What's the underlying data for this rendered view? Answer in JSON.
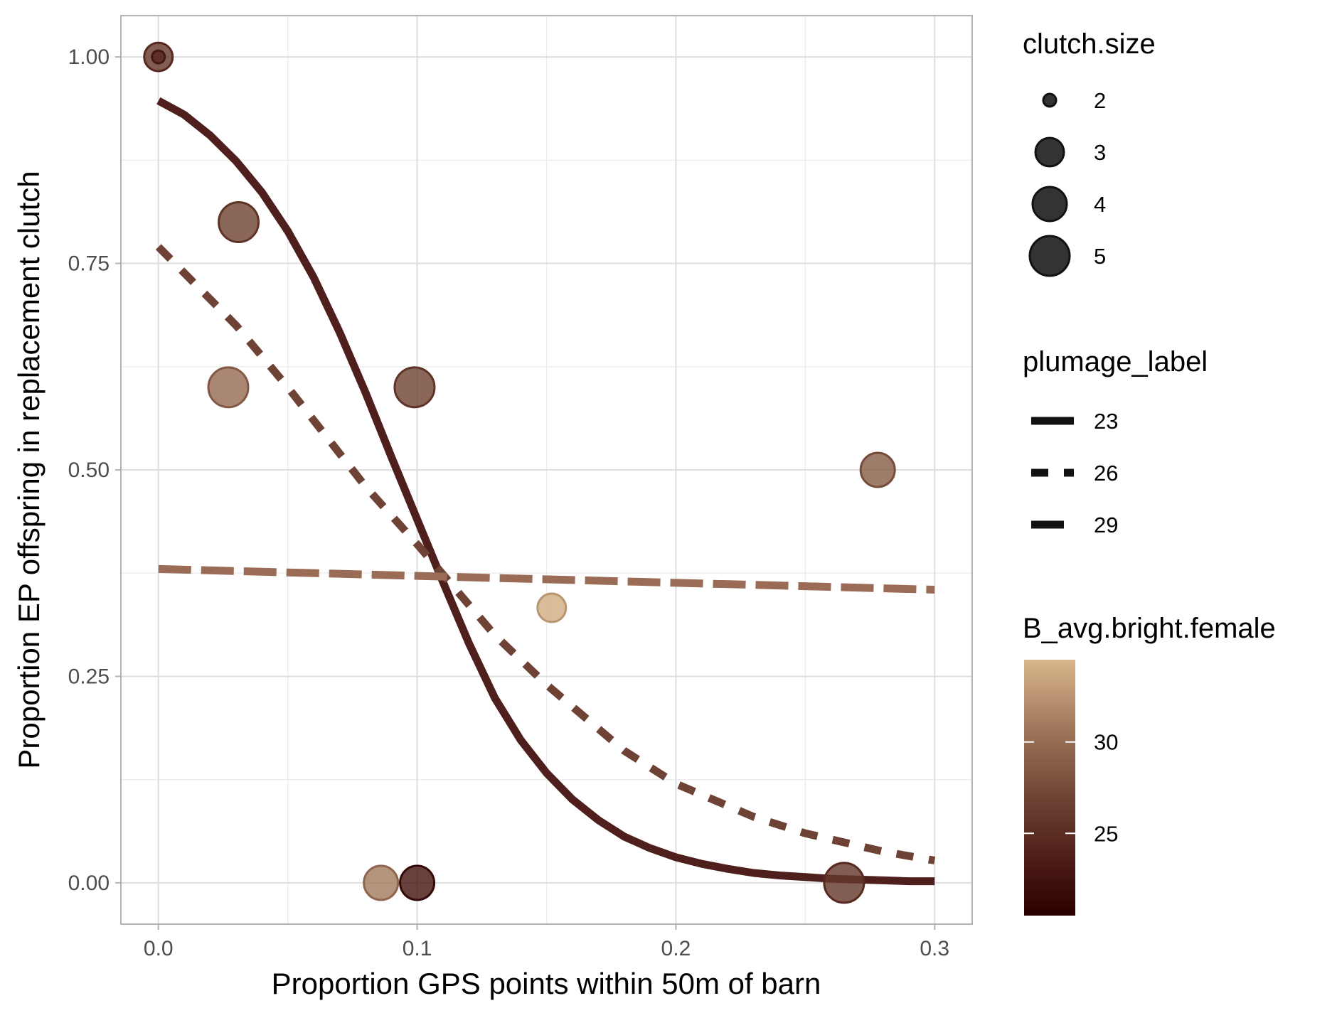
{
  "chart_data": {
    "type": "scatter",
    "xlabel": "Proportion GPS points within 50m of barn",
    "ylabel": "Proportion EP offspring in replacement clutch",
    "xlim": [
      -0.0145,
      0.3145
    ],
    "ylim": [
      -0.05,
      1.05
    ],
    "x_ticks": [
      0.0,
      0.1,
      0.2,
      0.3
    ],
    "x_tick_labels": [
      "0.0",
      "0.1",
      "0.2",
      "0.3"
    ],
    "y_ticks": [
      0.0,
      0.25,
      0.5,
      0.75,
      1.0
    ],
    "y_tick_labels": [
      "0.00",
      "0.25",
      "0.50",
      "0.75",
      "1.00"
    ],
    "grid": true,
    "points": [
      {
        "x": 0.0,
        "y": 1.0,
        "clutch_size": 3,
        "brightness": 26
      },
      {
        "x": 0.0,
        "y": 1.0,
        "clutch_size": 2,
        "brightness": 24.5
      },
      {
        "x": 0.031,
        "y": 0.8,
        "clutch_size": 5,
        "brightness": 27
      },
      {
        "x": 0.027,
        "y": 0.6,
        "clutch_size": 5,
        "brightness": 30
      },
      {
        "x": 0.099,
        "y": 0.6,
        "clutch_size": 5,
        "brightness": 27
      },
      {
        "x": 0.278,
        "y": 0.5,
        "clutch_size": 4,
        "brightness": 29
      },
      {
        "x": 0.152,
        "y": 0.333,
        "clutch_size": 3,
        "brightness": 34
      },
      {
        "x": 0.086,
        "y": 0.0,
        "clutch_size": 4,
        "brightness": 31
      },
      {
        "x": 0.1,
        "y": 0.0,
        "clutch_size": 4,
        "brightness": 23
      },
      {
        "x": 0.265,
        "y": 0.0,
        "clutch_size": 5,
        "brightness": 26
      }
    ],
    "series": [
      {
        "name": "23",
        "linetype": "solid",
        "color": "#4e1f1c",
        "x": [
          0.0,
          0.01,
          0.02,
          0.03,
          0.04,
          0.05,
          0.06,
          0.07,
          0.08,
          0.09,
          0.1,
          0.11,
          0.12,
          0.13,
          0.14,
          0.15,
          0.16,
          0.17,
          0.18,
          0.19,
          0.2,
          0.21,
          0.22,
          0.23,
          0.24,
          0.25,
          0.26,
          0.27,
          0.28,
          0.29,
          0.3
        ],
        "y": [
          0.947,
          0.93,
          0.905,
          0.874,
          0.836,
          0.789,
          0.733,
          0.667,
          0.594,
          0.516,
          0.44,
          0.364,
          0.29,
          0.224,
          0.173,
          0.133,
          0.101,
          0.076,
          0.056,
          0.042,
          0.031,
          0.023,
          0.017,
          0.012,
          0.009,
          0.007,
          0.005,
          0.004,
          0.003,
          0.002,
          0.002
        ]
      },
      {
        "name": "26",
        "linetype": "dashed",
        "color": "#6e4336",
        "x": [
          0.0,
          0.03,
          0.05,
          0.08,
          0.1,
          0.13,
          0.15,
          0.18,
          0.2,
          0.23,
          0.25,
          0.28,
          0.3
        ],
        "y": [
          0.77,
          0.675,
          0.6,
          0.48,
          0.41,
          0.3,
          0.24,
          0.16,
          0.12,
          0.08,
          0.06,
          0.038,
          0.027
        ]
      },
      {
        "name": "29",
        "linetype": "longdash",
        "color": "#9a6b55",
        "x": [
          0.0,
          0.3
        ],
        "y": [
          0.38,
          0.355
        ]
      }
    ],
    "legends": {
      "size": {
        "title": "clutch.size",
        "items": [
          "2",
          "3",
          "4",
          "5"
        ]
      },
      "linetype": {
        "title": "plumage_label",
        "items": [
          "23",
          "26",
          "29"
        ]
      },
      "color": {
        "title": "B_avg.bright.female",
        "breaks": [
          "25",
          "30"
        ],
        "range": [
          20.5,
          34.5
        ],
        "low": "#2a0000",
        "high": "#d8b68b"
      }
    }
  }
}
